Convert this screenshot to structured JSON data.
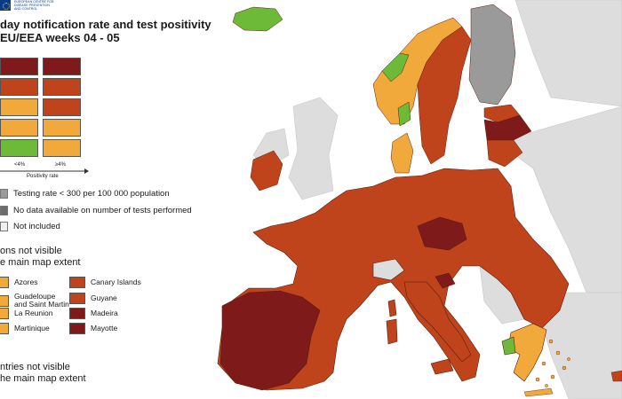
{
  "logo": {
    "lines": [
      "EUROPEAN CENTRE FOR",
      "DISEASE PREVENTION",
      "AND CONTROL"
    ]
  },
  "header": {
    "title": "day notification rate and test positivity",
    "subtitle": "EU/EEA weeks 04 - 05"
  },
  "colors": {
    "dark_red": "#7e1a1a",
    "red": "#c0441b",
    "orange": "#f2a93b",
    "green": "#6cba37",
    "grey": "#9a9a9a",
    "dark_grey": "#6d6d6d",
    "light_grey": "#dddddd",
    "sea": "#ffffff",
    "border": "#5a1e10"
  },
  "matrix": {
    "rows": [
      [
        "dark_red",
        "dark_red"
      ],
      [
        "red",
        "red"
      ],
      [
        "orange",
        "red"
      ],
      [
        "orange",
        "orange"
      ],
      [
        "green",
        "orange"
      ]
    ],
    "x_tick_labels": [
      "<4%",
      "≥4%"
    ],
    "x_axis_title": "Positivity rate"
  },
  "legend": {
    "testing_rate_low": "Testing rate < 300 per 100 000 population",
    "no_data": "No data available on number of tests performed",
    "not_included": "Not included"
  },
  "regions_section": {
    "title_line1": "ons not visible",
    "title_line2": "e main map extent",
    "left_items": [
      {
        "name": "Azores",
        "color": "orange"
      },
      {
        "name": "Guadeloupe\nand Saint Martin",
        "color": "orange"
      },
      {
        "name": "La Reunion",
        "color": "orange"
      },
      {
        "name": "Martinique",
        "color": "orange"
      }
    ],
    "right_items": [
      {
        "name": "Canary Islands",
        "color": "red"
      },
      {
        "name": "Guyane",
        "color": "red"
      },
      {
        "name": "Madeira",
        "color": "dark_red"
      },
      {
        "name": "Mayotte",
        "color": "dark_red"
      }
    ]
  },
  "countries_section": {
    "title_line1": "ntries not visible",
    "title_line2": "he main map extent"
  }
}
